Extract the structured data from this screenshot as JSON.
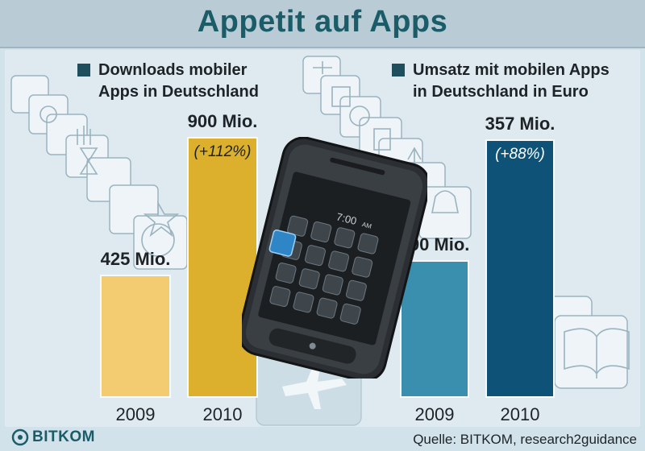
{
  "title": "Appetit auf Apps",
  "chart_data": [
    {
      "type": "bar",
      "legend": [
        "Downloads mobiler",
        "Apps in Deutschland"
      ],
      "categories": [
        "2009",
        "2010"
      ],
      "values": [
        425,
        900
      ],
      "value_labels": [
        "425 Mio.",
        "900 Mio."
      ],
      "annotations": [
        "",
        "(+112%)"
      ],
      "colors": [
        "#f3cc72",
        "#dcb02c"
      ],
      "ylim": [
        0,
        1000
      ]
    },
    {
      "type": "bar",
      "legend": [
        "Umsatz mit mobilen Apps",
        "in Deutschland in Euro"
      ],
      "categories": [
        "2009",
        "2010"
      ],
      "values": [
        190,
        357
      ],
      "value_labels": [
        "190 Mio.",
        "357 Mio."
      ],
      "annotations": [
        "",
        "(+88%)"
      ],
      "colors": [
        "#3a8fae",
        "#0e5377"
      ],
      "ylim": [
        0,
        400
      ]
    }
  ],
  "phone": {
    "time": "7:00",
    "period": "AM"
  },
  "footer": {
    "logo": "BITKOM",
    "source": "Quelle: BITKOM, research2guidance"
  },
  "colors": {
    "accent": "#1a5c68",
    "title_bg": "#b9ccd5",
    "background": "#d2e2ea"
  }
}
